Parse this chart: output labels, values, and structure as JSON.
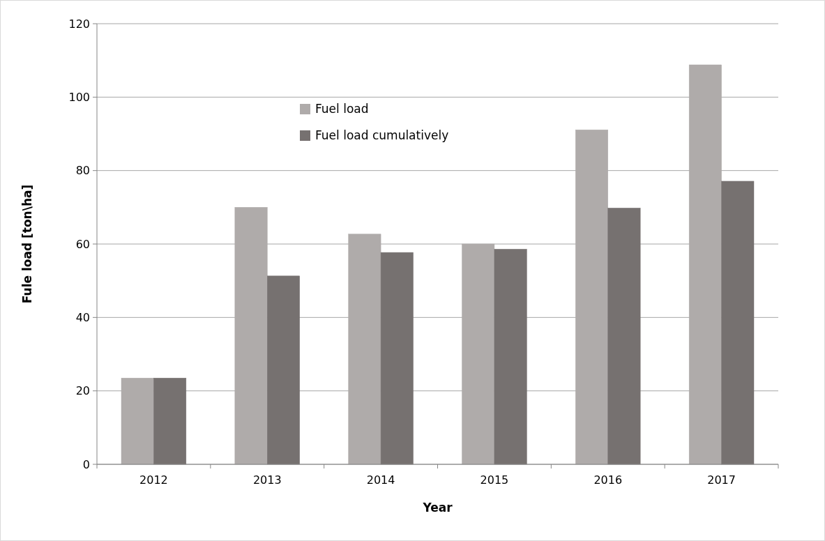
{
  "chart_data": {
    "type": "bar",
    "xlabel": "Year",
    "ylabel": "Fule load [ton\\ha]",
    "categories": [
      "2012",
      "2013",
      "2014",
      "2015",
      "2016",
      "2017"
    ],
    "series": [
      {
        "name": "Fuel load",
        "color": "#afabaa",
        "values": [
          23.5,
          70,
          62.7,
          60,
          91.1,
          108.8
        ]
      },
      {
        "name": "Fuel load cumulatively",
        "color": "#767170",
        "values": [
          23.5,
          51.3,
          57.7,
          58.6,
          69.8,
          77.1
        ]
      }
    ],
    "ylim": [
      0,
      120
    ],
    "yticks": [
      0,
      20,
      40,
      60,
      80,
      100,
      120
    ],
    "grid": "y",
    "legend": "top"
  }
}
